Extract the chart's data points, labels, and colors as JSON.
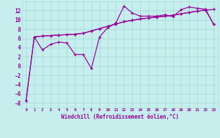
{
  "xlabel": "Windchill (Refroidissement éolien,°C)",
  "ylabel": "",
  "bg_color": "#c5eeed",
  "grid_color": "#aaddda",
  "line_color": "#990099",
  "xlim": [
    -0.5,
    23.5
  ],
  "ylim": [
    -9,
    14
  ],
  "yticks": [
    -8,
    -6,
    -4,
    -2,
    0,
    2,
    4,
    6,
    8,
    10,
    12
  ],
  "xticks": [
    0,
    1,
    2,
    3,
    4,
    5,
    6,
    7,
    8,
    9,
    10,
    11,
    12,
    13,
    14,
    15,
    16,
    17,
    18,
    19,
    20,
    21,
    22,
    23
  ],
  "series1_x": [
    0,
    1,
    2,
    3,
    4,
    5,
    6,
    7,
    8,
    9,
    10,
    11,
    12,
    13,
    14,
    15,
    16,
    17,
    18,
    19,
    20,
    21,
    22,
    23
  ],
  "series1_y": [
    -7.5,
    6.3,
    3.5,
    4.7,
    5.2,
    5.0,
    2.5,
    2.5,
    -0.5,
    6.3,
    8.3,
    9.3,
    13.0,
    11.5,
    10.8,
    10.8,
    10.8,
    11.1,
    10.7,
    12.2,
    12.8,
    12.5,
    12.3,
    9.0
  ],
  "series2_x": [
    0,
    1,
    2,
    3,
    4,
    5,
    6,
    7,
    8,
    9,
    10,
    11,
    12,
    13,
    14,
    15,
    16,
    17,
    18,
    19,
    20,
    21,
    22,
    23
  ],
  "series2_y": [
    -7.5,
    6.3,
    6.5,
    6.6,
    6.7,
    6.8,
    6.9,
    7.1,
    7.6,
    8.1,
    8.6,
    9.1,
    9.6,
    9.9,
    10.2,
    10.4,
    10.6,
    10.8,
    11.0,
    11.3,
    11.6,
    11.9,
    12.1,
    12.3
  ],
  "series3_x": [
    1,
    2,
    3,
    4,
    5,
    6,
    7,
    8,
    9,
    10,
    11,
    12,
    13,
    14,
    15,
    16,
    17,
    18,
    19,
    20,
    21,
    22,
    23
  ],
  "series3_y": [
    6.3,
    6.5,
    6.6,
    6.7,
    6.8,
    6.9,
    7.1,
    7.6,
    8.1,
    8.6,
    9.1,
    9.6,
    9.9,
    10.2,
    10.4,
    10.6,
    10.8,
    11.0,
    11.3,
    11.6,
    11.9,
    12.1,
    9.0
  ]
}
